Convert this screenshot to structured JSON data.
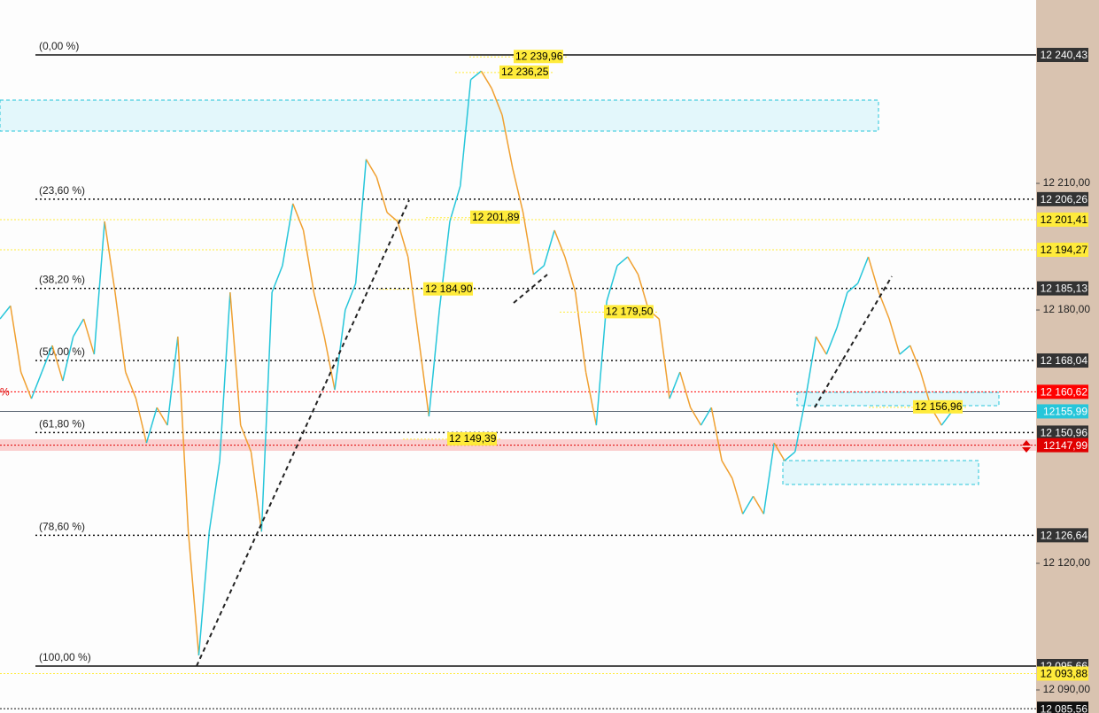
{
  "chart_data": {
    "type": "line",
    "up_color": "#26c6da",
    "down_color": "#f0a030",
    "ylim": [
      12084.54,
      12253.44
    ],
    "yticks": [
      {
        "value": 12210,
        "label": "12 210,00"
      },
      {
        "value": 12180,
        "label": "12 180,00"
      },
      {
        "value": 12120,
        "label": "12 120,00"
      },
      {
        "value": 12090,
        "label": "12 090,00"
      }
    ],
    "values": [
      12177.9,
      12181.0,
      12165.3,
      12159.0,
      12165.3,
      12171.6,
      12163.2,
      12173.7,
      12177.9,
      12169.5,
      12201.0,
      12184.2,
      12165.3,
      12159.0,
      12148.5,
      12156.9,
      12152.7,
      12173.7,
      12127.5,
      12098.2,
      12127.5,
      12144.3,
      12184.2,
      12152.7,
      12146.4,
      12127.5,
      12184.2,
      12190.5,
      12205.2,
      12198.9,
      12184.2,
      12173.7,
      12161.1,
      12180.0,
      12186.3,
      12215.7,
      12211.5,
      12203.1,
      12201.0,
      12192.6,
      12173.7,
      12154.8,
      12180.0,
      12201.0,
      12209.4,
      12234.6,
      12236.6,
      12232.5,
      12226.2,
      12213.6,
      12203.1,
      12188.4,
      12190.5,
      12198.9,
      12192.6,
      12184.2,
      12165.3,
      12152.7,
      12182.1,
      12190.5,
      12192.6,
      12188.4,
      12180.0,
      12177.9,
      12159.0,
      12165.3,
      12156.9,
      12152.7,
      12156.9,
      12144.3,
      12140.1,
      12131.7,
      12135.9,
      12131.7,
      12148.5,
      12144.3,
      12146.4,
      12159.0,
      12173.7,
      12169.5,
      12175.8,
      12184.2,
      12186.3,
      12192.6,
      12184.2,
      12177.9,
      12169.5,
      12171.6,
      12165.3,
      12156.9,
      12152.7,
      12156.0
    ],
    "fib_levels": [
      {
        "label": "(0,00 %)",
        "value": 12240.43,
        "value_label": "12 240,43"
      },
      {
        "label": "(23,60 %)",
        "value": 12206.26,
        "value_label": "12 206,26"
      },
      {
        "label": "(38,20 %)",
        "value": 12185.13,
        "value_label": "12 185,13"
      },
      {
        "label": "(50,00 %)",
        "value": 12168.04,
        "value_label": "12 168,04"
      },
      {
        "label": "(61,80 %)",
        "value": 12150.96,
        "value_label": "12 150,96"
      },
      {
        "label": "(78,60 %)",
        "value": 12126.64,
        "value_label": "12 126,64"
      },
      {
        "label": "(100,00 %)",
        "value": 12095.66,
        "value_label": "12 095,66"
      }
    ],
    "price_lines": [
      {
        "value": 12201.41,
        "value_label": "12 201,41",
        "color": "#ffeb3b",
        "text_color": "#000000"
      },
      {
        "value": 12194.27,
        "value_label": "12 194,27",
        "color": "#ffeb3b",
        "text_color": "#000000"
      },
      {
        "value": 12093.88,
        "value_label": "12 093,88",
        "color": "#ffeb3b",
        "text_color": "#000000"
      },
      {
        "value": 12160.62,
        "value_label": "12 160,62",
        "color": "#ff0000",
        "text_color": "#ffffff",
        "label": "%"
      },
      {
        "value": 12147.99,
        "value_label": "12147,99",
        "color": "#e00000",
        "text_color": "#ffffff"
      },
      {
        "value": 12155.99,
        "value_label": "12155,99",
        "color": "#26c6da",
        "text_color": "#ffffff"
      },
      {
        "value": 12085.56,
        "value_label": "12 085,56",
        "color": "#111111",
        "text_color": "#ffffff"
      }
    ],
    "annotations": [
      {
        "label": "12 239,96",
        "value": 12239.96
      },
      {
        "label": "12 236,25",
        "value": 12236.25
      },
      {
        "label": "12 201,89",
        "value": 12201.89
      },
      {
        "label": "12 184,90",
        "value": 12184.9
      },
      {
        "label": "12 179,50",
        "value": 12179.5
      },
      {
        "label": "12 149,39",
        "value": 12149.39
      },
      {
        "label": "12 156,96",
        "value": 12156.96
      }
    ]
  }
}
